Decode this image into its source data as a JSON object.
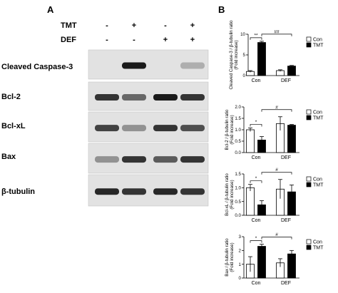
{
  "panel_a": {
    "label": "A",
    "conditions": [
      {
        "name": "TMT",
        "marks": [
          "-",
          "+",
          "-",
          "+"
        ]
      },
      {
        "name": "DEF",
        "marks": [
          "-",
          "-",
          "+",
          "+"
        ]
      }
    ],
    "blots": [
      {
        "protein": "Cleaved Caspase-3",
        "intensity": [
          0.0,
          0.95,
          0.0,
          0.3
        ]
      },
      {
        "protein": "Bcl-2",
        "intensity": [
          0.85,
          0.65,
          0.95,
          0.85
        ]
      },
      {
        "protein": "Bcl-xL",
        "intensity": [
          0.8,
          0.45,
          0.85,
          0.75
        ]
      },
      {
        "protein": "Bax",
        "intensity": [
          0.45,
          0.85,
          0.7,
          0.85
        ]
      },
      {
        "protein": "β-tubulin",
        "intensity": [
          0.9,
          0.85,
          0.9,
          0.85
        ]
      }
    ]
  },
  "panel_b": {
    "label": "B"
  },
  "chart_data": [
    {
      "type": "bar",
      "ylabel": "Cleaved Caspase-3 / β-tubulin ratio (Fold increase)",
      "categories": [
        "Con",
        "DEF"
      ],
      "series": [
        {
          "name": "Con",
          "values": [
            1.0,
            1.2
          ],
          "errors": [
            0.2,
            0.2
          ]
        },
        {
          "name": "TMT",
          "values": [
            8.0,
            2.3
          ],
          "errors": [
            0.3,
            0.15
          ]
        }
      ],
      "ylim": [
        0,
        10
      ],
      "yticks": [
        "0",
        "5",
        "10"
      ],
      "legend": [
        "Con",
        "TMT"
      ],
      "sig": [
        "**",
        "##"
      ]
    },
    {
      "type": "bar",
      "ylabel": "Bcl-2 / β-tubulin ratio (Fold increase)",
      "categories": [
        "Con",
        "DEF"
      ],
      "series": [
        {
          "name": "Con",
          "values": [
            1.0,
            1.27
          ],
          "errors": [
            0.08,
            0.3
          ]
        },
        {
          "name": "TMT",
          "values": [
            0.55,
            1.2
          ],
          "errors": [
            0.15,
            0.03
          ]
        }
      ],
      "ylim": [
        0,
        2.0
      ],
      "yticks": [
        "0.0",
        "0.5",
        "1.0",
        "1.5",
        "2.0"
      ],
      "legend": [
        "Con",
        "TMT"
      ],
      "sig": [
        "*",
        "#"
      ]
    },
    {
      "type": "bar",
      "ylabel": "Bcl-xL / β-tubulin ratio (Fold increase)",
      "categories": [
        "Con",
        "DEF"
      ],
      "series": [
        {
          "name": "Con",
          "values": [
            1.0,
            0.95
          ],
          "errors": [
            0.12,
            0.35
          ]
        },
        {
          "name": "TMT",
          "values": [
            0.38,
            0.85
          ],
          "errors": [
            0.15,
            0.25
          ]
        }
      ],
      "ylim": [
        0,
        1.5
      ],
      "yticks": [
        "0.0",
        "0.5",
        "1.0",
        "1.5"
      ],
      "legend": [
        "Con",
        "TMT"
      ],
      "sig": [
        "*",
        "#"
      ]
    },
    {
      "type": "bar",
      "ylabel": "Bax / β-tubulin ratio (Fold increase)",
      "categories": [
        "Con",
        "DEF"
      ],
      "series": [
        {
          "name": "Con",
          "values": [
            1.0,
            1.1
          ],
          "errors": [
            0.55,
            0.3
          ]
        },
        {
          "name": "TMT",
          "values": [
            2.3,
            1.75
          ],
          "errors": [
            0.15,
            0.25
          ]
        }
      ],
      "ylim": [
        0,
        3
      ],
      "yticks": [
        "0",
        "1",
        "2",
        "3"
      ],
      "legend": [
        "Con",
        "TMT"
      ],
      "sig": [
        "*",
        "#"
      ]
    }
  ]
}
